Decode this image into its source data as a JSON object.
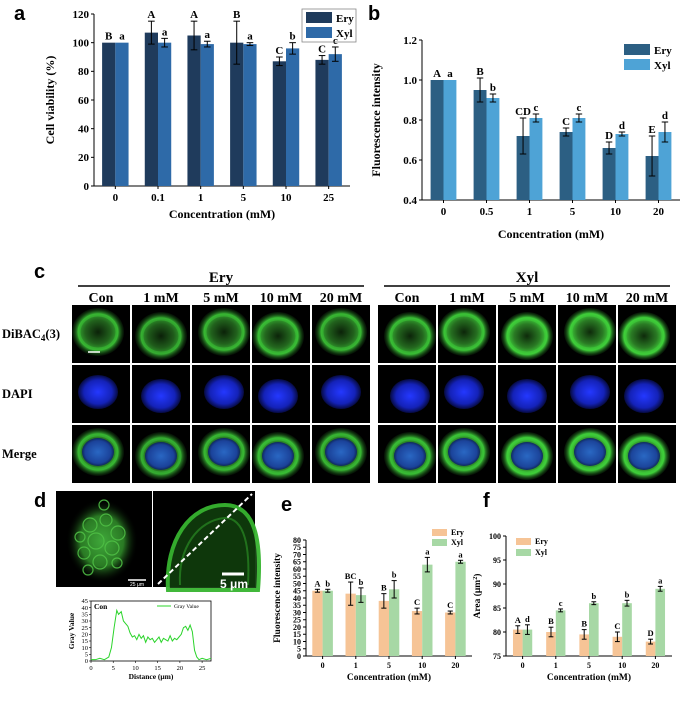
{
  "panels": {
    "a": {
      "letter": "a"
    },
    "b": {
      "letter": "b"
    },
    "c": {
      "letter": "c"
    },
    "d": {
      "letter": "d"
    },
    "e": {
      "letter": "e"
    },
    "f": {
      "letter": "f"
    }
  },
  "chart_data": [
    {
      "id": "a",
      "type": "bar",
      "xlabel": "Concentration (mM)",
      "ylabel": "Cell viability (%)",
      "categories": [
        "0",
        "0.1",
        "1",
        "5",
        "10",
        "25"
      ],
      "ylim": [
        0,
        120
      ],
      "yticks": [
        0,
        20,
        40,
        60,
        80,
        100,
        120
      ],
      "legend_position": "top-right",
      "series": [
        {
          "name": "Ery",
          "color": "#1f3b5c",
          "values": [
            100,
            107,
            105,
            100,
            87,
            88
          ],
          "errors": [
            0,
            8,
            10,
            15,
            3,
            3
          ],
          "letters": [
            "B",
            "A",
            "A",
            "B",
            "C",
            "C"
          ]
        },
        {
          "name": "Xyl",
          "color": "#2e6aa8",
          "values": [
            100,
            100,
            99,
            99,
            96,
            92
          ],
          "errors": [
            0,
            3,
            2,
            1,
            4,
            5
          ],
          "letters": [
            "a",
            "a",
            "a",
            "a",
            "b",
            "c"
          ]
        }
      ]
    },
    {
      "id": "b",
      "type": "bar",
      "xlabel": "Concentration (mM)",
      "ylabel": "Fluorescence intensity",
      "categories": [
        "0",
        "0.5",
        "1",
        "5",
        "10",
        "20"
      ],
      "ylim": [
        0.4,
        1.2
      ],
      "yticks": [
        0.4,
        0.6,
        0.8,
        1.0,
        1.2
      ],
      "legend_position": "top-right",
      "series": [
        {
          "name": "Ery",
          "color": "#2c5f83",
          "values": [
            1.0,
            0.95,
            0.72,
            0.74,
            0.66,
            0.62
          ],
          "errors": [
            0,
            0.06,
            0.09,
            0.02,
            0.03,
            0.1
          ],
          "letters": [
            "A",
            "B",
            "CD",
            "C",
            "D",
            "E"
          ]
        },
        {
          "name": "Xyl",
          "color": "#4ea3d6",
          "values": [
            1.0,
            0.91,
            0.81,
            0.81,
            0.73,
            0.74
          ],
          "errors": [
            0,
            0.02,
            0.02,
            0.02,
            0.01,
            0.05
          ],
          "letters": [
            "a",
            "b",
            "c",
            "c",
            "d",
            "d"
          ]
        }
      ]
    },
    {
      "id": "d",
      "type": "line",
      "title": "Con",
      "xlabel": "Distance (μm)",
      "ylabel": "Gray Value",
      "legend": "Gray Value",
      "xlim": [
        0,
        27
      ],
      "ylim": [
        0,
        45
      ],
      "xticks": [
        0,
        5,
        10,
        15,
        20,
        25
      ],
      "yticks": [
        0,
        5,
        10,
        15,
        20,
        25,
        30,
        35,
        40,
        45
      ],
      "color": "#2bd42b",
      "x": [
        0,
        1,
        2,
        3,
        4,
        4.6,
        5.2,
        5.8,
        6.2,
        6.8,
        7.3,
        7.8,
        8.3,
        8.8,
        9.3,
        9.8,
        10.3,
        10.8,
        11.3,
        11.8,
        12.3,
        12.8,
        13.3,
        13.8,
        14.3,
        14.8,
        15.3,
        15.8,
        16.3,
        16.8,
        17.3,
        17.8,
        18.3,
        18.8,
        19.3,
        19.8,
        20.3,
        20.8,
        21.3,
        21.8,
        22.3,
        22.8,
        23.3,
        23.8,
        24.3,
        25,
        26,
        27
      ],
      "y": [
        1,
        1,
        2,
        1,
        3,
        10,
        25,
        38,
        35,
        37,
        30,
        28,
        26,
        21,
        18,
        19,
        16,
        20,
        17,
        19,
        14,
        18,
        16,
        17,
        14,
        16,
        18,
        14,
        17,
        16,
        15,
        19,
        15,
        17,
        16,
        18,
        20,
        25,
        26,
        23,
        27,
        22,
        8,
        3,
        1,
        2,
        1,
        2
      ]
    },
    {
      "id": "e",
      "type": "bar",
      "xlabel": "Concentration (mM)",
      "ylabel": "Fluorescence intensity",
      "categories": [
        "0",
        "1",
        "5",
        "10",
        "20"
      ],
      "ylim": [
        0,
        80
      ],
      "yticks": [
        0,
        5,
        10,
        15,
        20,
        25,
        30,
        35,
        40,
        45,
        50,
        55,
        60,
        65,
        70,
        75,
        80
      ],
      "legend_position": "top-right",
      "series": [
        {
          "name": "Ery",
          "color": "#f6c496",
          "values": [
            45,
            43,
            38,
            31,
            30
          ],
          "errors": [
            1,
            8,
            5,
            2,
            1
          ],
          "letters": [
            "A",
            "BC",
            "B",
            "C",
            "C"
          ]
        },
        {
          "name": "Xyl",
          "color": "#a7d8a5",
          "values": [
            45,
            42,
            46,
            63,
            65
          ],
          "errors": [
            1,
            5,
            6,
            5,
            1
          ],
          "letters": [
            "b",
            "b",
            "b",
            "a",
            "a"
          ]
        }
      ]
    },
    {
      "id": "f",
      "type": "bar",
      "xlabel": "Concentration (mM)",
      "ylabel": "Area (μm²)",
      "categories": [
        "0",
        "1",
        "5",
        "10",
        "20"
      ],
      "ylim": [
        75,
        100
      ],
      "yticks": [
        75,
        80,
        85,
        90,
        95,
        100
      ],
      "legend_position": "top-left",
      "series": [
        {
          "name": "Ery",
          "color": "#f6c496",
          "values": [
            80.5,
            80,
            79.5,
            79,
            78
          ],
          "errors": [
            0.8,
            1,
            1,
            1,
            0.5
          ],
          "letters": [
            "A",
            "B",
            "B",
            "C",
            "D"
          ]
        },
        {
          "name": "Xyl",
          "color": "#a7d8a5",
          "values": [
            80.5,
            84.5,
            86,
            86,
            89
          ],
          "errors": [
            1,
            0.3,
            0.3,
            0.6,
            0.5
          ],
          "letters": [
            "d",
            "c",
            "b",
            "b",
            "a"
          ]
        }
      ]
    }
  ],
  "micrographs": {
    "groups": [
      "Ery",
      "Xyl"
    ],
    "columns": [
      "Con",
      "1 mM",
      "5 mM",
      "10 mM",
      "20 mM"
    ],
    "rows": [
      {
        "label_main": "DiBAC",
        "label_sub": "4",
        "label_tail": "(3)",
        "stain": "green"
      },
      {
        "label_main": "DAPI",
        "label_sub": "",
        "label_tail": "",
        "stain": "blue"
      },
      {
        "label_main": "Merge",
        "label_sub": "",
        "label_tail": "",
        "stain": "merge"
      }
    ],
    "colors": {
      "green": "#3fcf3a",
      "blue": "#1a2cd8",
      "background": "#000000"
    }
  },
  "panel_d_images": {
    "scale_left": "25 μm",
    "scale_right": "5 μm"
  }
}
